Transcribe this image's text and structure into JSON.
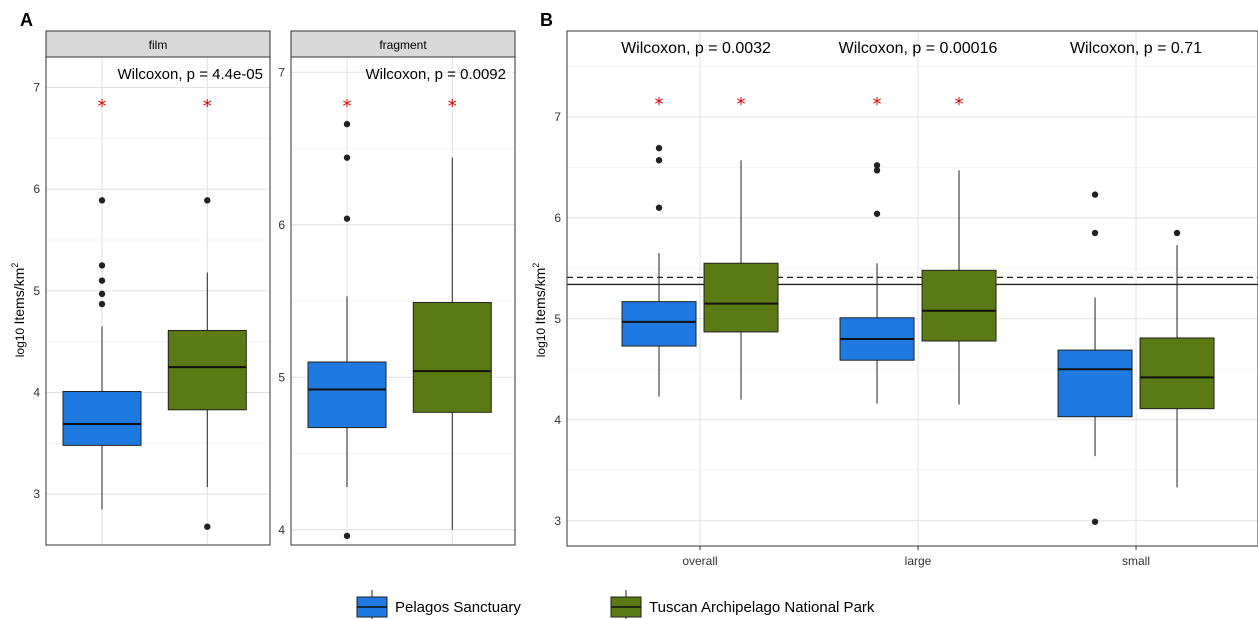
{
  "figure": {
    "panel_a_tag": "A",
    "panel_b_tag": "B",
    "y_axis_prefix": "log10",
    "y_axis_main": "Items/km",
    "y_axis_sup": "2"
  },
  "colors": {
    "pelagos": "#1e7ae0",
    "tuscan": "#5a7a14",
    "significance_star": "#e00000"
  },
  "legend": {
    "items": [
      {
        "label": "Pelagos Sanctuary",
        "color": "#1e7ae0"
      },
      {
        "label": "Tuscan Archipelago National Park",
        "color": "#5a7a14"
      }
    ]
  },
  "chart_data": [
    {
      "type": "box",
      "panel": "A",
      "facet": "film",
      "annotation": "Wilcoxon, p = 4.4e-05",
      "ylim": [
        2.5,
        7.3
      ],
      "yticks": [
        3,
        4,
        5,
        6,
        7
      ],
      "grid": true,
      "series": [
        {
          "name": "Pelagos Sanctuary",
          "whisker_low": 2.85,
          "q1": 3.48,
          "median": 3.69,
          "q3": 4.01,
          "whisker_high": 4.65,
          "outliers": [
            4.87,
            4.97,
            5.1,
            5.25,
            5.89
          ],
          "significant": true
        },
        {
          "name": "Tuscan Archipelago National Park",
          "whisker_low": 3.07,
          "q1": 3.83,
          "median": 4.25,
          "q3": 4.61,
          "whisker_high": 5.18,
          "outliers": [
            2.68,
            5.89
          ],
          "significant": true
        }
      ]
    },
    {
      "type": "box",
      "panel": "A",
      "facet": "fragment",
      "annotation": "Wilcoxon, p = 0.0092",
      "ylim": [
        3.9,
        7.1
      ],
      "yticks": [
        4,
        5,
        6,
        7
      ],
      "grid": true,
      "series": [
        {
          "name": "Pelagos Sanctuary",
          "whisker_low": 4.28,
          "q1": 4.67,
          "median": 4.92,
          "q3": 5.1,
          "whisker_high": 5.53,
          "outliers": [
            3.96,
            6.04,
            6.44,
            6.66
          ],
          "significant": true
        },
        {
          "name": "Tuscan Archipelago National Park",
          "whisker_low": 4.0,
          "q1": 4.77,
          "median": 5.04,
          "q3": 5.49,
          "whisker_high": 6.44,
          "outliers": [],
          "significant": true
        }
      ]
    },
    {
      "type": "box",
      "panel": "B",
      "categories": [
        "overall",
        "large",
        "small"
      ],
      "annotations": [
        "Wilcoxon, p = 0.0032",
        "Wilcoxon, p = 0.00016",
        "Wilcoxon, p = 0.71"
      ],
      "ylim": [
        2.75,
        7.85
      ],
      "yticks": [
        3,
        4,
        5,
        6,
        7
      ],
      "grid": true,
      "reference_lines": [
        {
          "y": 5.34,
          "style": "solid"
        },
        {
          "y": 5.41,
          "style": "dashed"
        }
      ],
      "series": [
        {
          "name": "Pelagos Sanctuary",
          "boxes": [
            {
              "whisker_low": 4.23,
              "q1": 4.73,
              "median": 4.97,
              "q3": 5.17,
              "whisker_high": 5.65,
              "outliers": [
                6.1,
                6.57,
                6.69
              ],
              "significant": true
            },
            {
              "whisker_low": 4.16,
              "q1": 4.59,
              "median": 4.8,
              "q3": 5.01,
              "whisker_high": 5.55,
              "outliers": [
                6.04,
                6.47,
                6.52
              ],
              "significant": true
            },
            {
              "whisker_low": 3.64,
              "q1": 4.03,
              "median": 4.5,
              "q3": 4.69,
              "whisker_high": 5.21,
              "outliers": [
                2.99,
                5.85,
                6.23
              ],
              "significant": false
            }
          ]
        },
        {
          "name": "Tuscan Archipelago National Park",
          "boxes": [
            {
              "whisker_low": 4.2,
              "q1": 4.87,
              "median": 5.15,
              "q3": 5.55,
              "whisker_high": 6.57,
              "outliers": [],
              "significant": true
            },
            {
              "whisker_low": 4.15,
              "q1": 4.78,
              "median": 5.08,
              "q3": 5.48,
              "whisker_high": 6.47,
              "outliers": [],
              "significant": true
            },
            {
              "whisker_low": 3.33,
              "q1": 4.11,
              "median": 4.42,
              "q3": 4.81,
              "whisker_high": 5.73,
              "outliers": [
                5.85
              ],
              "significant": false
            }
          ]
        }
      ]
    }
  ]
}
